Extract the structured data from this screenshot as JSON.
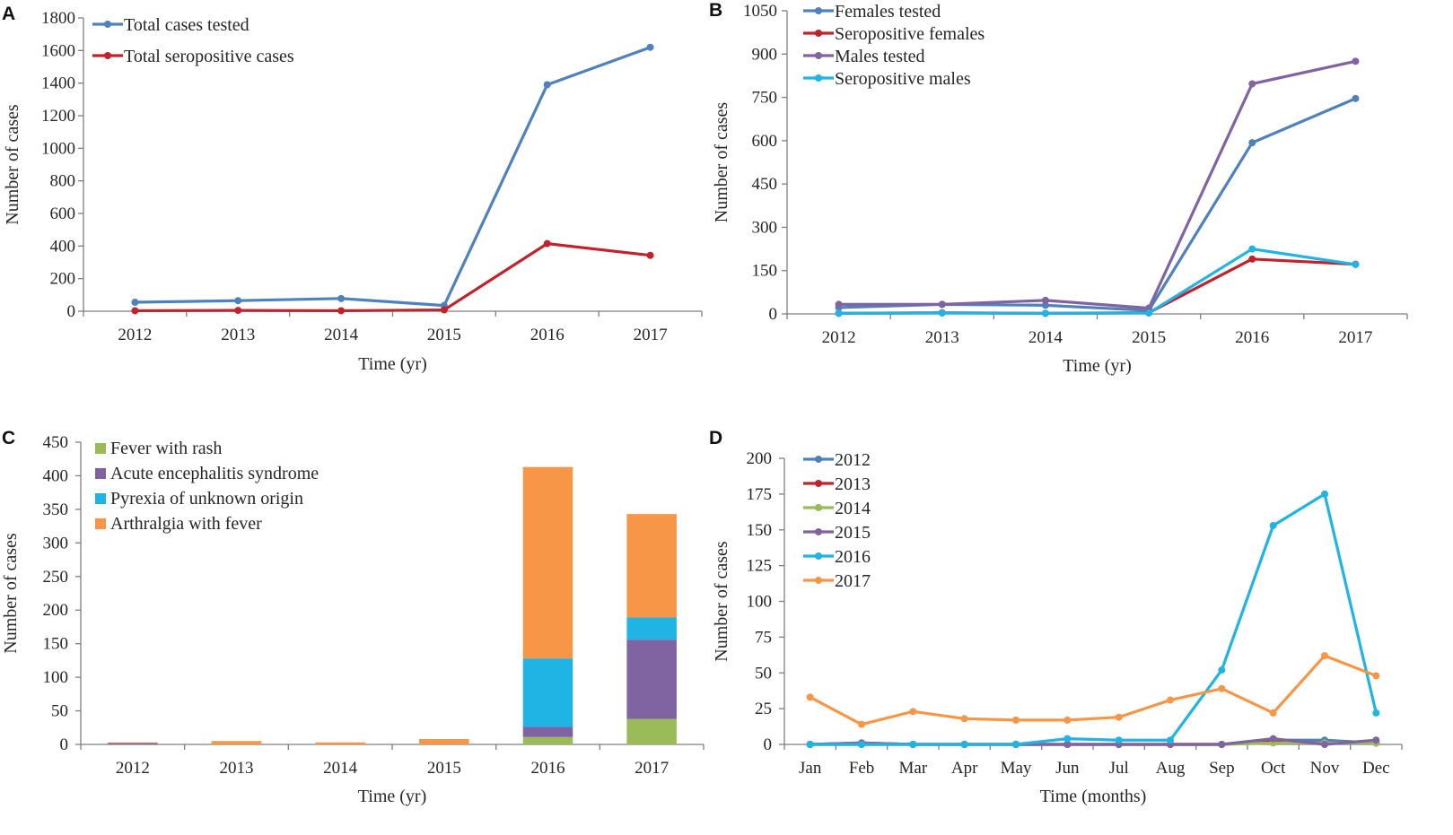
{
  "colors": {
    "blue": "#4f81bd",
    "red": "#c0232c",
    "purple": "#8064a2",
    "cyan": "#1fb4e4",
    "green": "#9bbb59",
    "orange": "#f79646",
    "axis": "#7f7f7f",
    "text": "#262626"
  },
  "chart_data": [
    {
      "panel": "A",
      "type": "line",
      "xlabel": "Time (yr)",
      "ylabel": "Number of cases",
      "categories": [
        "2012",
        "2013",
        "2014",
        "2015",
        "2016",
        "2017"
      ],
      "ylim": [
        0,
        1800
      ],
      "yticks": [
        0,
        200,
        400,
        600,
        800,
        1000,
        1200,
        1400,
        1600,
        1800
      ],
      "legend_position": "top-left",
      "series": [
        {
          "name": "Total cases tested",
          "color": "#4f81bd",
          "values": [
            55,
            65,
            78,
            35,
            1390,
            1620
          ]
        },
        {
          "name": "Total seropositive cases",
          "color": "#c0232c",
          "values": [
            3,
            5,
            3,
            8,
            415,
            343
          ]
        }
      ]
    },
    {
      "panel": "B",
      "type": "line",
      "xlabel": "Time (yr)",
      "ylabel": "Number of cases",
      "categories": [
        "2012",
        "2013",
        "2014",
        "2015",
        "2016",
        "2017"
      ],
      "ylim": [
        0,
        1050
      ],
      "yticks": [
        0,
        150,
        300,
        450,
        600,
        750,
        900,
        1050
      ],
      "legend_position": "top-left",
      "series": [
        {
          "name": "Females tested",
          "color": "#4f81bd",
          "values": [
            22,
            33,
            30,
            12,
            593,
            746
          ]
        },
        {
          "name": "Seropositive females",
          "color": "#c0232c",
          "values": [
            2,
            4,
            2,
            4,
            190,
            172
          ]
        },
        {
          "name": "Males tested",
          "color": "#8064a2",
          "values": [
            33,
            33,
            47,
            20,
            797,
            875
          ]
        },
        {
          "name": "Seropositive males",
          "color": "#1fb4e4",
          "values": [
            2,
            3,
            2,
            3,
            225,
            171
          ]
        }
      ]
    },
    {
      "panel": "C",
      "type": "bar",
      "stacked": true,
      "xlabel": "Time (yr)",
      "ylabel": "Number of cases",
      "categories": [
        "2012",
        "2013",
        "2014",
        "2015",
        "2016",
        "2017"
      ],
      "ylim": [
        0,
        450
      ],
      "yticks": [
        0,
        50,
        100,
        150,
        200,
        250,
        300,
        350,
        400,
        450
      ],
      "legend_position": "top-left",
      "series": [
        {
          "name": "Fever with rash",
          "color": "#9bbb59",
          "values": [
            0,
            0,
            0,
            0,
            11,
            38
          ]
        },
        {
          "name": "Acute encephalitis syndrome",
          "color": "#8064a2",
          "values": [
            2,
            0,
            0,
            0,
            15,
            118
          ]
        },
        {
          "name": "Pyrexia of unknown origin",
          "color": "#1fb4e4",
          "values": [
            0,
            0,
            0,
            0,
            102,
            33
          ]
        },
        {
          "name": "Arthralgia with fever",
          "color": "#f79646",
          "values": [
            1,
            5,
            3,
            8,
            285,
            154
          ]
        }
      ]
    },
    {
      "panel": "D",
      "type": "line",
      "xlabel": "Time (months)",
      "ylabel": "Number of cases",
      "categories": [
        "Jan",
        "Feb",
        "Mar",
        "Apr",
        "May",
        "Jun",
        "Jul",
        "Aug",
        "Sep",
        "Oct",
        "Nov",
        "Dec"
      ],
      "ylim": [
        0,
        200
      ],
      "yticks": [
        0,
        25,
        50,
        75,
        100,
        125,
        150,
        175,
        200
      ],
      "legend_position": "top-left",
      "series": [
        {
          "name": "2012",
          "color": "#4f81bd",
          "values": [
            0,
            0,
            0,
            0,
            0,
            0,
            0,
            0,
            0,
            3,
            3,
            1
          ]
        },
        {
          "name": "2013",
          "color": "#c0232c",
          "values": [
            0,
            1,
            0,
            0,
            0,
            0,
            0,
            0,
            0,
            2,
            1,
            1
          ]
        },
        {
          "name": "2014",
          "color": "#9bbb59",
          "values": [
            0,
            0,
            0,
            0,
            0,
            0,
            0,
            0,
            0,
            1,
            1,
            1
          ]
        },
        {
          "name": "2015",
          "color": "#8064a2",
          "values": [
            0,
            1,
            0,
            0,
            0,
            0,
            0,
            0,
            0,
            4,
            0,
            3
          ]
        },
        {
          "name": "2016",
          "color": "#1fb4e4",
          "values": [
            0,
            0,
            0,
            0,
            0,
            4,
            3,
            3,
            52,
            153,
            175,
            22
          ]
        },
        {
          "name": "2017",
          "color": "#f79646",
          "values": [
            33,
            14,
            23,
            18,
            17,
            17,
            19,
            31,
            39,
            22,
            62,
            48
          ]
        }
      ]
    }
  ]
}
